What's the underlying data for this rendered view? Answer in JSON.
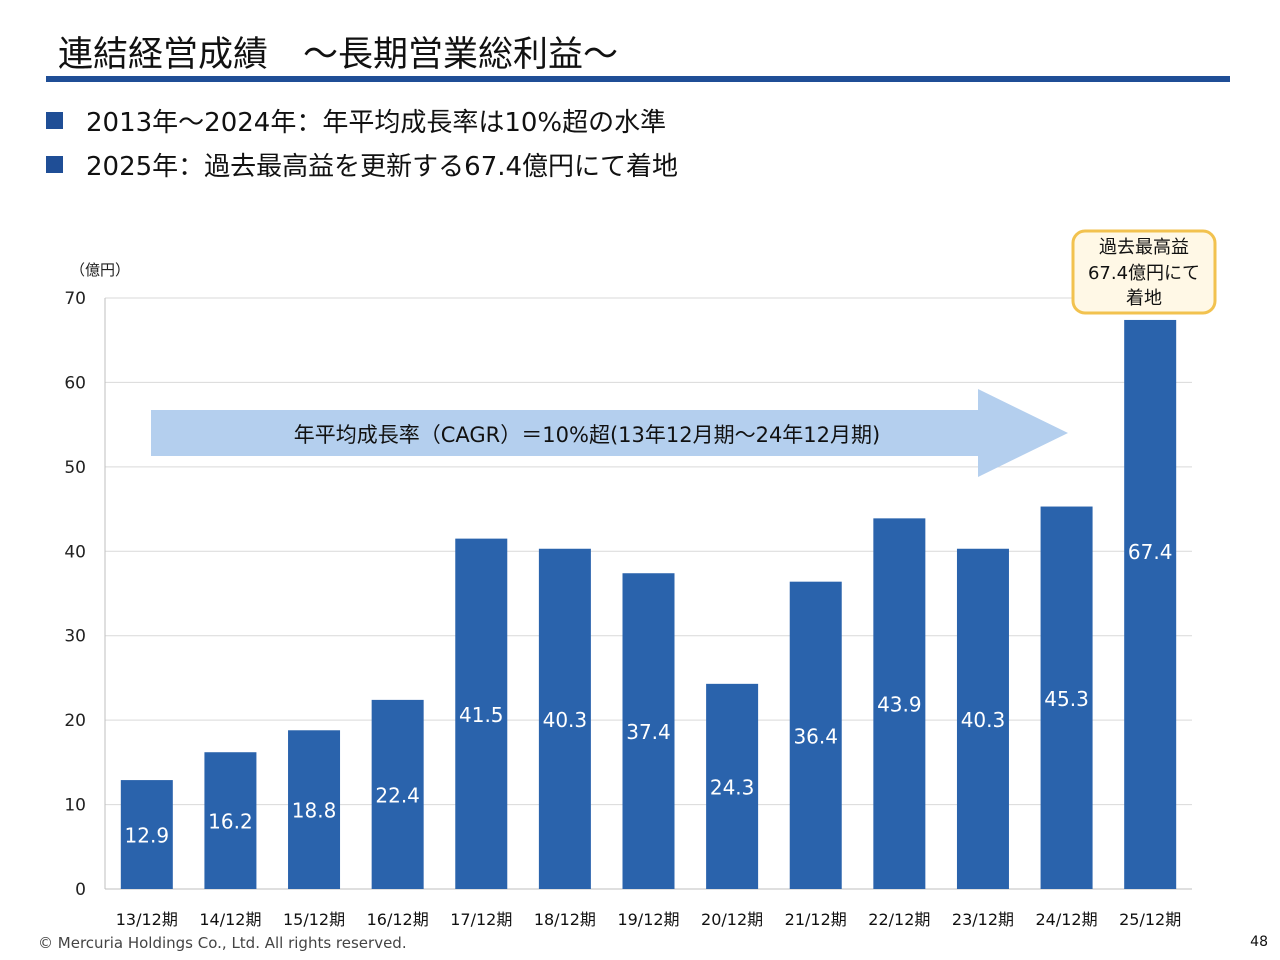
{
  "slide": {
    "title": "連結経営成績　～長期営業総利益～",
    "bullets": [
      "2013年～2024年：年平均成長率は10%超の水準",
      "2025年：過去最高益を更新する67.4億円にて着地"
    ],
    "footer": "© Mercuria Holdings Co., Ltd. All rights reserved.",
    "page_number": "48"
  },
  "colors": {
    "bar": "#2a63ac",
    "title_rule": "#1f4e96",
    "arrow": "#b4cfee",
    "callout_border": "#f2c24f",
    "callout_fill": "#fff8e6"
  },
  "chart_data": {
    "type": "bar",
    "unit_label": "（億円）",
    "categories": [
      "13/12期",
      "14/12期",
      "15/12期",
      "16/12期",
      "17/12期",
      "18/12期",
      "19/12期",
      "20/12期",
      "21/12期",
      "22/12期",
      "23/12期",
      "24/12期",
      "25/12期"
    ],
    "values": [
      12.9,
      16.2,
      18.8,
      22.4,
      41.5,
      40.3,
      37.4,
      24.3,
      36.4,
      43.9,
      40.3,
      45.3,
      67.4
    ],
    "ylim": [
      0,
      70
    ],
    "yticks": [
      0,
      10,
      20,
      30,
      40,
      50,
      60,
      70
    ],
    "grid": true,
    "legend": "none",
    "annotations": {
      "cagr_arrow": "年平均成長率（CAGR）＝10%超(13年12月期～24年12月期)",
      "callout_lines": [
        "過去最高益",
        "67.4億円にて",
        "着地"
      ]
    }
  }
}
